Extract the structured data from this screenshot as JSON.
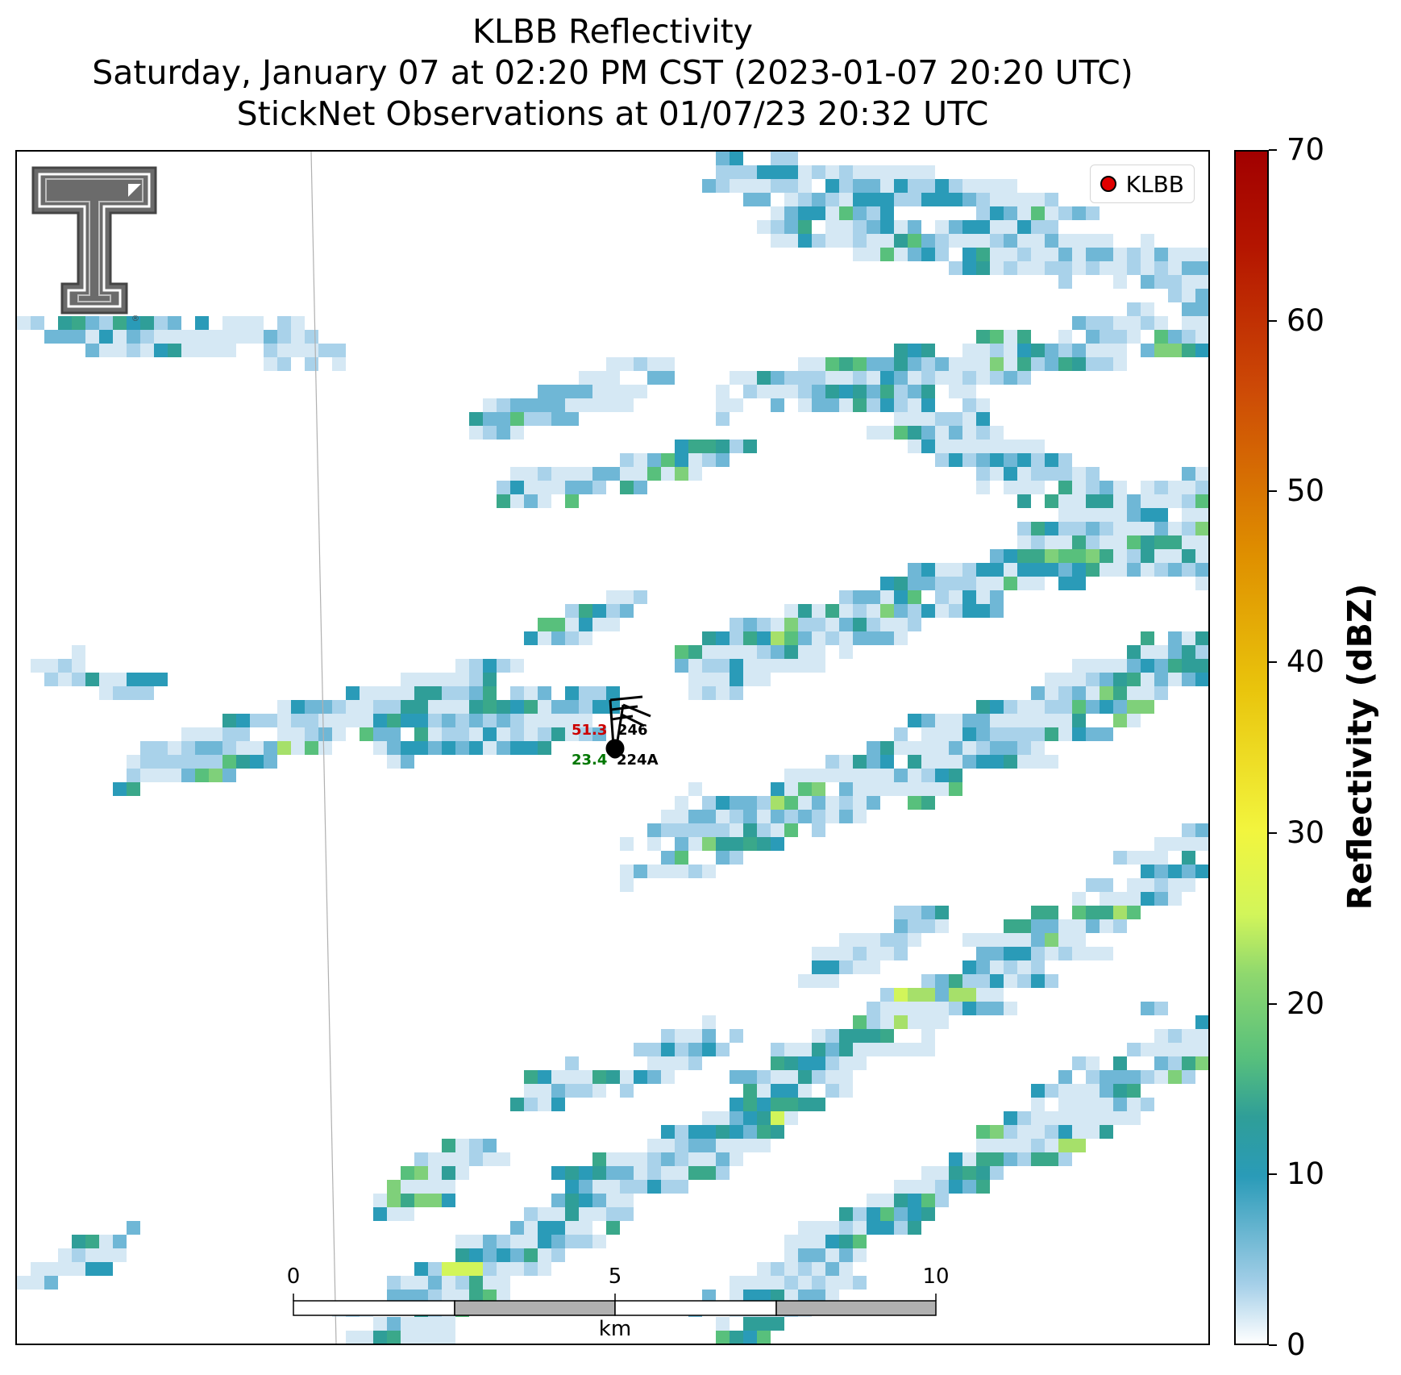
{
  "title": {
    "line1": "KLBB Reflectivity",
    "line2": "Saturday, January 07 at 02:20 PM CST (2023-01-07 20:20 UTC)",
    "line3": "StickNet Observations at 01/07/23 20:32 UTC"
  },
  "legend": {
    "label": "KLBB",
    "marker_color": "#e00000"
  },
  "colorbar": {
    "title": "Reflectivity (dBZ)",
    "ticks": [
      "0",
      "10",
      "20",
      "30",
      "40",
      "50",
      "60",
      "70"
    ],
    "range": [
      0,
      70
    ]
  },
  "stations": [
    {
      "id": "246",
      "value": "51.3",
      "value_color": "#cc0000"
    },
    {
      "id": "224A",
      "value": "23.4",
      "value_color": "#007700"
    }
  ],
  "scale_bar": {
    "labels": [
      "0",
      "5",
      "10"
    ],
    "units": "km"
  },
  "logo": {
    "icon": "texas-tech-double-t-logo"
  }
}
